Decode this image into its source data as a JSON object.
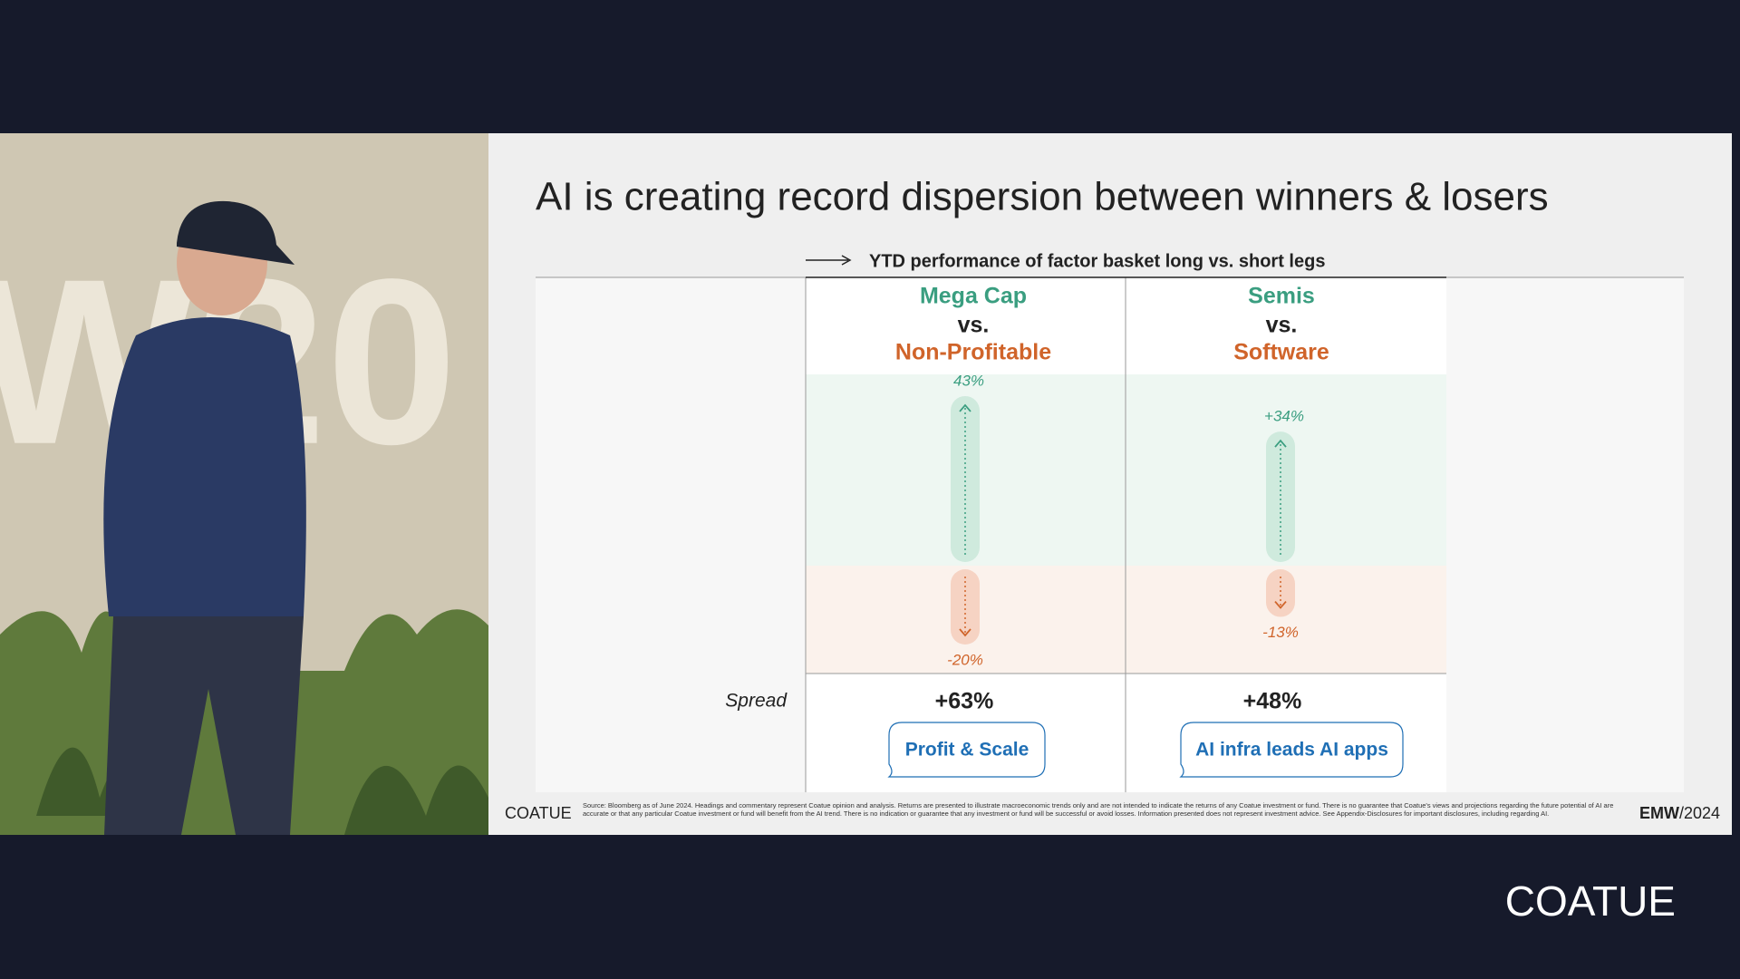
{
  "slide": {
    "title": "AI is creating record dispersion between winners & losers",
    "subtitle": "YTD performance of factor basket long vs. short legs",
    "spread_label": "Spread",
    "columns": [
      {
        "long": "Mega Cap",
        "vs": "vs.",
        "short": "Non-Profitable",
        "values": [
          43,
          -20
        ],
        "value_labels": [
          "43%",
          "-20%"
        ],
        "spread": "+63%",
        "takeaway": "Profit & Scale"
      },
      {
        "long": "Semis",
        "vs": "vs.",
        "short": "Software",
        "values": [
          34,
          -13
        ],
        "value_labels": [
          "+34%",
          "-13%"
        ],
        "spread": "+48%",
        "takeaway": "AI infra leads AI apps"
      }
    ],
    "footer": {
      "brand": "COATUE",
      "source": "Source: Bloomberg as of June 2024. Headings and commentary represent Coatue opinion and analysis. Returns are presented to illustrate macroeconomic trends only and are not intended to indicate the returns of any Coatue investment or fund. There is no guarantee that Coatue's views and projections regarding the future potential of AI are accurate or that any particular Coatue investment or fund will benefit from the AI trend. There is no indication or guarantee that any investment or fund will be successful or avoid losses. Information presented does not represent investment advice. See Appendix-Disclosures for important disclosures, including regarding AI.",
      "event": "EMW",
      "year": "/2024"
    }
  },
  "watermark": "COATUE"
}
